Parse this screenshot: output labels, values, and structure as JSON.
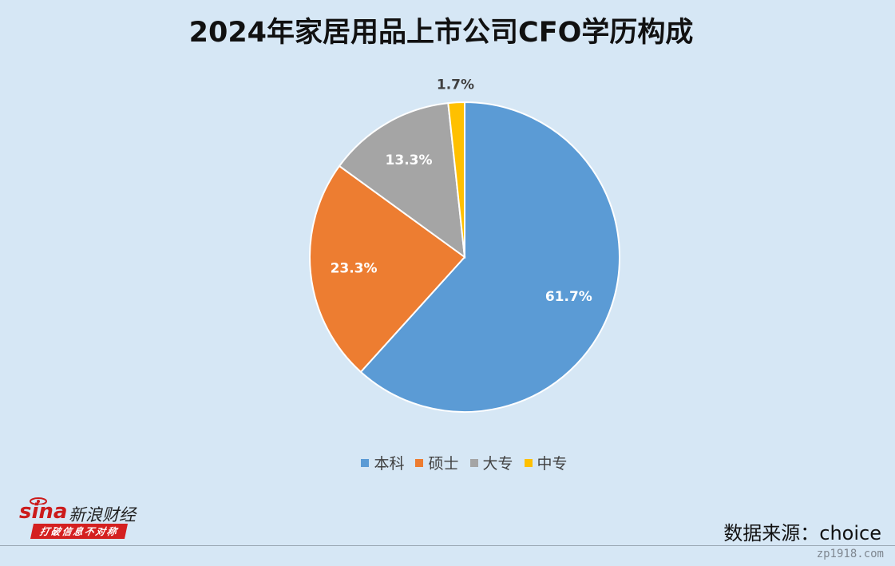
{
  "title": "2024年家居用品上市公司CFO学历构成",
  "chart_data": {
    "type": "pie",
    "title": "2024年家居用品上市公司CFO学历构成",
    "categories": [
      "本科",
      "硕士",
      "大专",
      "中专"
    ],
    "values": [
      61.7,
      23.3,
      13.3,
      1.7
    ],
    "labels": [
      "61.7%",
      "23.3%",
      "13.3%",
      "1.7%"
    ],
    "colors": [
      "#5b9bd5",
      "#ed7d31",
      "#a5a5a5",
      "#ffc000"
    ],
    "start_angle_deg": 0,
    "direction": "clockwise",
    "legend_position": "bottom"
  },
  "legend": [
    {
      "label": "本科",
      "color": "#5b9bd5"
    },
    {
      "label": "硕士",
      "color": "#ed7d31"
    },
    {
      "label": "大专",
      "color": "#a5a5a5"
    },
    {
      "label": "中专",
      "color": "#ffc000"
    }
  ],
  "logo": {
    "brand": "sina",
    "name": "新浪财经",
    "slogan": "打破信息不对称"
  },
  "source": "数据来源：choice",
  "watermark": "zp1918.com"
}
